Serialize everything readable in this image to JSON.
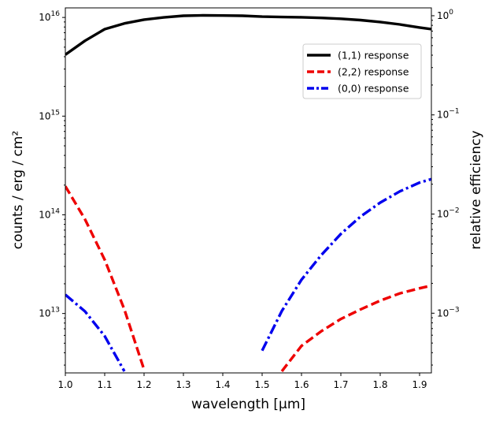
{
  "chart_data": {
    "type": "line",
    "x": [
      1.0,
      1.05,
      1.1,
      1.15,
      1.2,
      1.25,
      1.3,
      1.35,
      1.4,
      1.45,
      1.5,
      1.55,
      1.6,
      1.65,
      1.7,
      1.75,
      1.8,
      1.85,
      1.9,
      1.93
    ],
    "series": [
      {
        "name": "(1,1) response",
        "color": "#000000",
        "style": "solid",
        "axis": "left",
        "values": [
          4200000000000000.0,
          5800000000000000.0,
          7600000000000000.0,
          8700000000000000.0,
          9500000000000000.0,
          1e+16,
          1.04e+16,
          1.05e+16,
          1.045e+16,
          1.04e+16,
          1.02e+16,
          1.01e+16,
          1.005e+16,
          9900000000000000.0,
          9700000000000000.0,
          9400000000000000.0,
          9000000000000000.0,
          8500000000000000.0,
          7900000000000000.0,
          7600000000000000.0
        ]
      },
      {
        "name": "(2,2) response",
        "color": "#ee0000",
        "style": "dashed",
        "axis": "left",
        "values": [
          195000000000000.0,
          90000000000000.0,
          35000000000000.0,
          11000000000000.0,
          2700000000000.0,
          null,
          null,
          null,
          null,
          null,
          null,
          2600000000000.0,
          4700000000000.0,
          6600000000000.0,
          8800000000000.0,
          11000000000000.0,
          13500000000000.0,
          16000000000000.0,
          18000000000000.0,
          19200000000000.0
        ]
      },
      {
        "name": "(0,0) response",
        "color": "#0000ee",
        "style": "dashdot",
        "axis": "left",
        "values": [
          15500000000000.0,
          10500000000000.0,
          5900000000000.0,
          2600000000000.0,
          null,
          null,
          null,
          null,
          null,
          null,
          4200000000000.0,
          10600000000000.0,
          22000000000000.0,
          39000000000000.0,
          64000000000000.0,
          96000000000000.0,
          133000000000000.0,
          173000000000000.0,
          212000000000000.0,
          230000000000000.0
        ]
      }
    ],
    "xlabel": "wavelength [μm]",
    "ylabel": "counts / erg / cm²",
    "ylabel_right": "relative efficiency",
    "xlim": [
      1.0,
      1.93
    ],
    "ylim": [
      2500000000000.0,
      1.25e+16
    ],
    "ylim_right": [
      0.00025,
      1.2
    ],
    "xscale": "linear",
    "yscale": "log",
    "xticks": [
      1.0,
      1.1,
      1.2,
      1.3,
      1.4,
      1.5,
      1.6,
      1.7,
      1.8,
      1.9
    ],
    "xtick_labels": [
      "1.0",
      "1.1",
      "1.2",
      "1.3",
      "1.4",
      "1.5",
      "1.6",
      "1.7",
      "1.8",
      "1.9"
    ],
    "yticks": [
      10000000000000.0,
      100000000000000.0,
      1000000000000000.0,
      1e+16
    ],
    "ytick_labels": [
      {
        "base": "10",
        "exp": "13"
      },
      {
        "base": "10",
        "exp": "14"
      },
      {
        "base": "10",
        "exp": "15"
      },
      {
        "base": "10",
        "exp": "16"
      }
    ],
    "yticks_right": [
      0.001,
      0.01,
      0.1,
      1
    ],
    "ytick_right_labels": [
      {
        "base": "10",
        "exp": "−3"
      },
      {
        "base": "10",
        "exp": "−2"
      },
      {
        "base": "10",
        "exp": "−1"
      },
      {
        "base": "10",
        "exp": "0"
      }
    ],
    "legend": {
      "placement": "upper right",
      "entries": [
        "(1,1) response",
        "(2,2) response",
        "(0,0) response"
      ]
    },
    "grid": false
  }
}
